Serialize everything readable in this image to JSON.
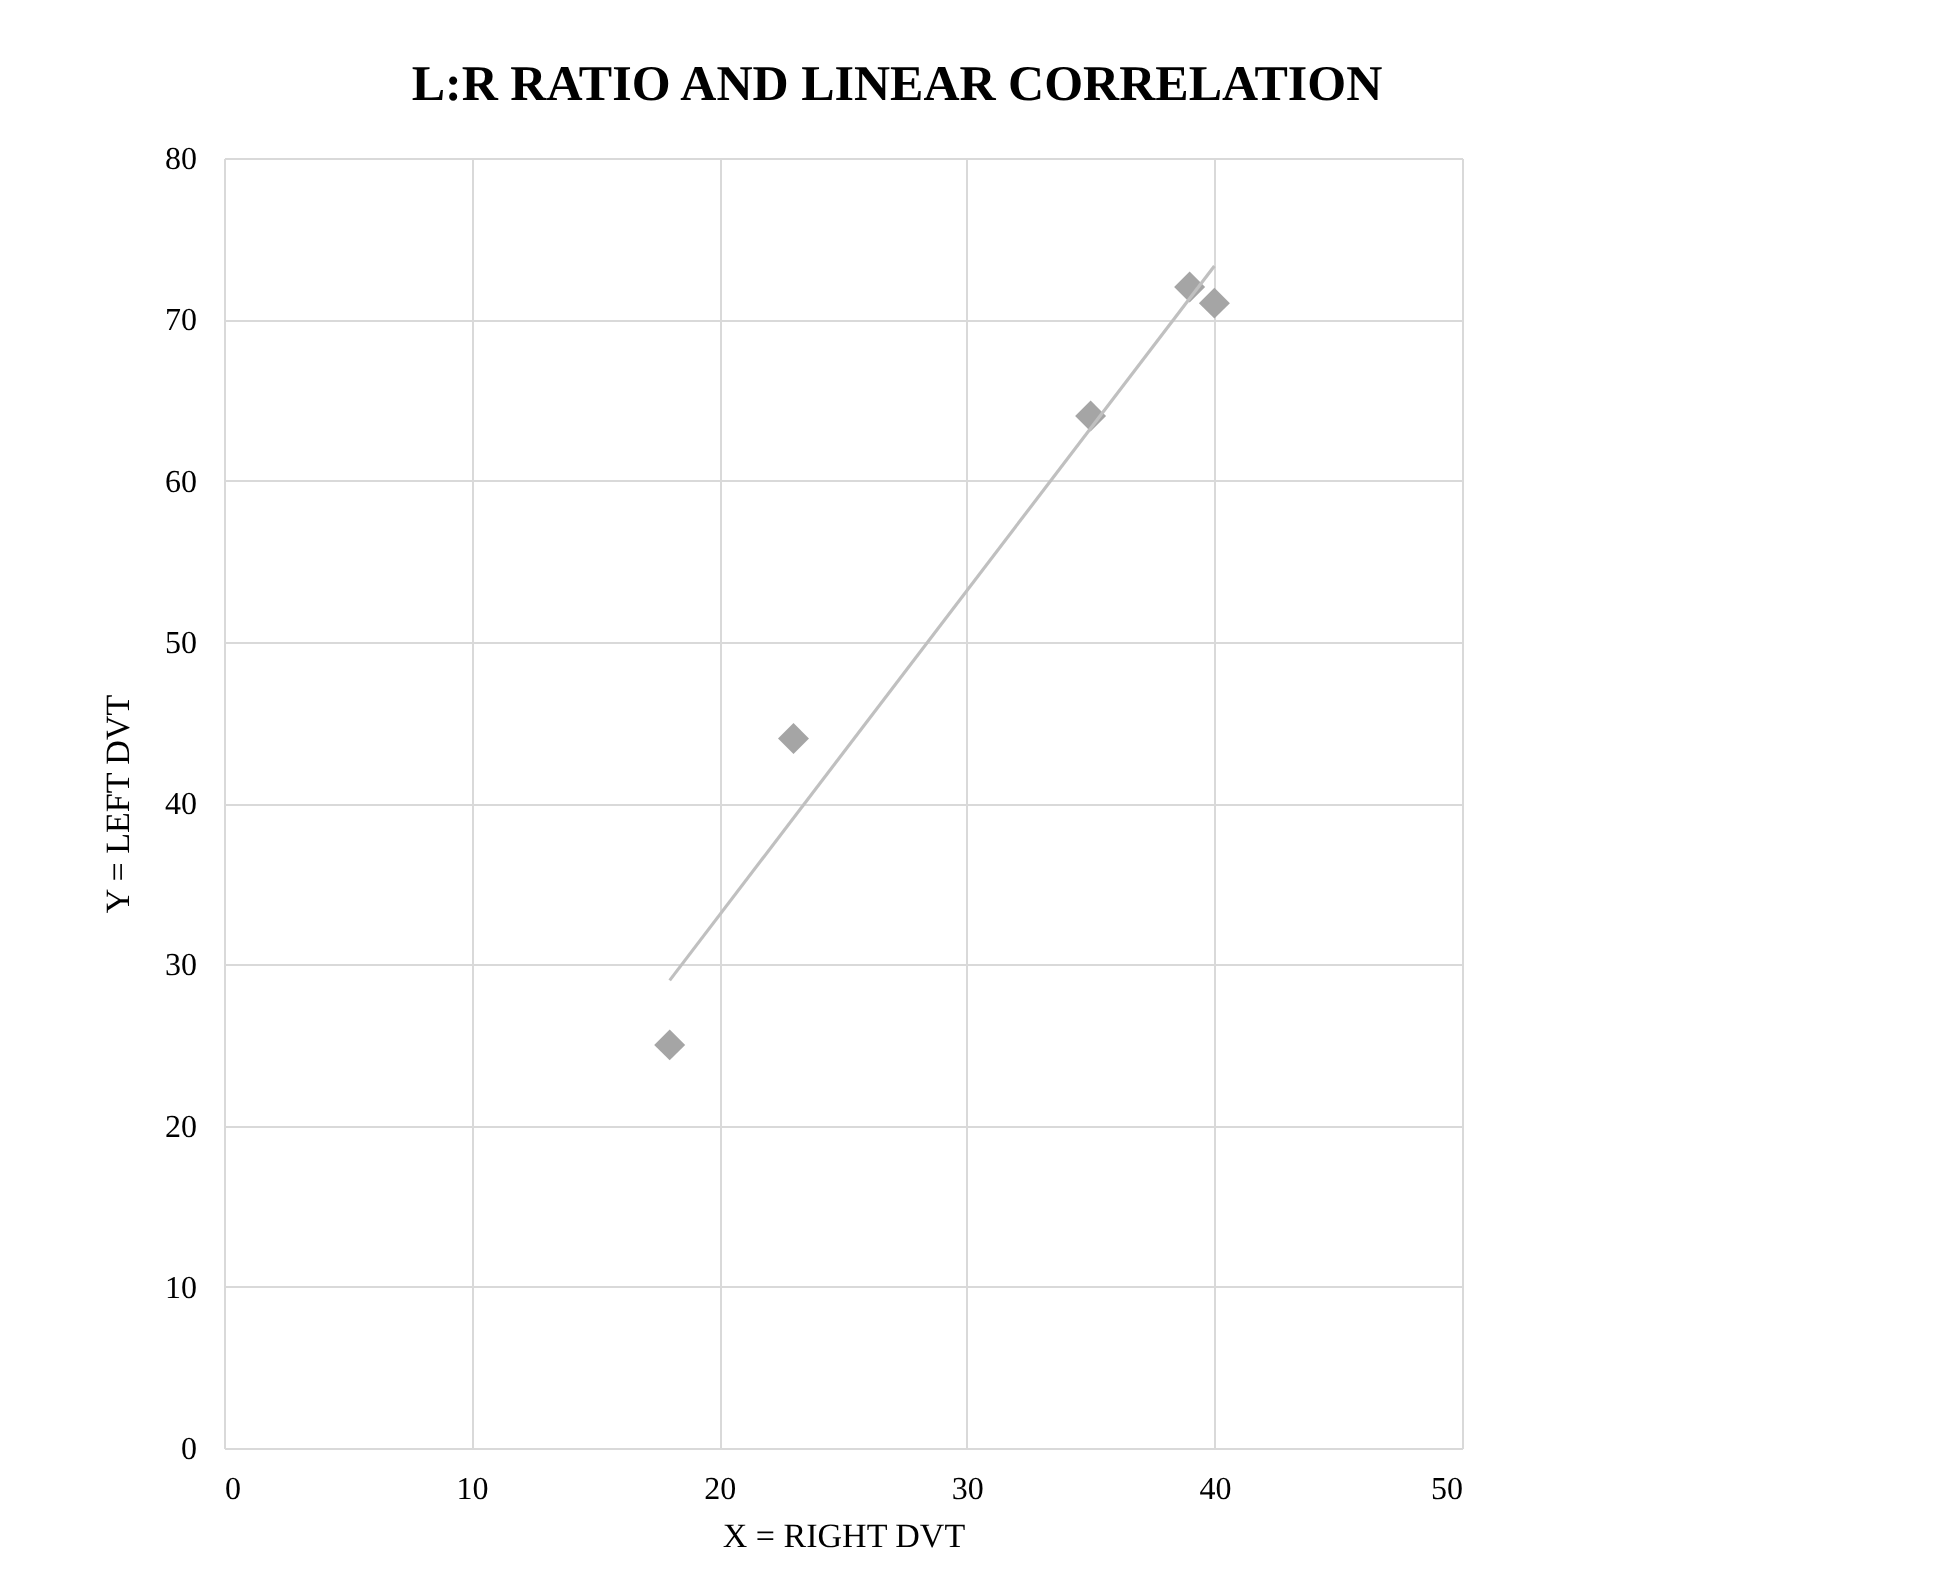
{
  "chart_data": {
    "type": "scatter",
    "title": "L:R RATIO AND LINEAR CORRELATION",
    "xlabel": "X = RIGHT DVT",
    "ylabel": "Y = LEFT DVT",
    "x": [
      18,
      23,
      35,
      39,
      40
    ],
    "series": [
      {
        "color": "#a5a5a5",
        "values": [
          25,
          44,
          64,
          72,
          71
        ],
        "marker": "diamond"
      },
      {
        "type": "line",
        "color": "#c0c0c0",
        "x": [
          18,
          40
        ],
        "values": [
          29.0,
          73.3
        ],
        "marker": "none"
      }
    ],
    "xlim": [
      0,
      50
    ],
    "xticks": [
      0,
      10,
      20,
      30,
      40,
      50
    ],
    "ylim": [
      0,
      80
    ],
    "yticks": [
      0,
      10,
      20,
      30,
      40,
      50,
      60,
      70,
      80
    ],
    "grid": true
  }
}
